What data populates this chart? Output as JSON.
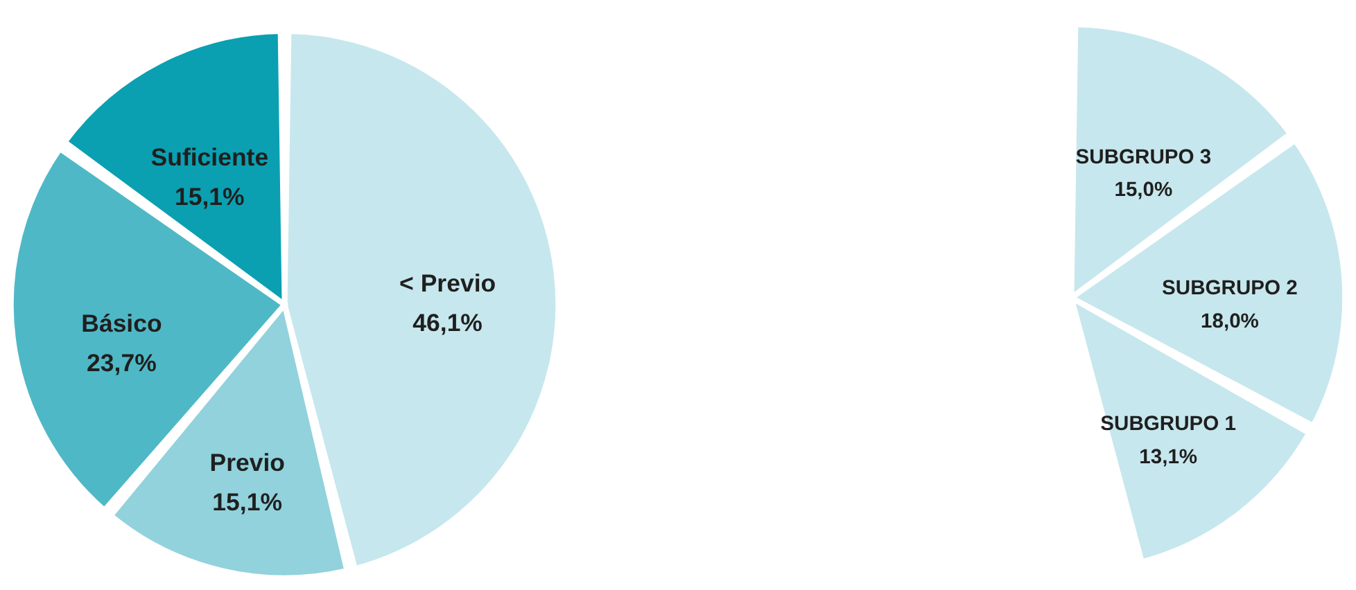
{
  "chart_data": [
    {
      "type": "pie",
      "categories": [
        "< Previo",
        "Previo",
        "Básico",
        "Suficiente"
      ],
      "values": [
        46.1,
        15.1,
        23.7,
        15.1
      ],
      "colors": [
        "#c6e7ed",
        "#91d2dc",
        "#4fb8c6",
        "#0aa0b2"
      ],
      "value_labels": [
        "46,1%",
        "15,1%",
        "23,7%",
        "15,1%"
      ]
    },
    {
      "type": "pie",
      "categories": [
        "SUBGRUPO 3",
        "SUBGRUPO 2",
        "SUBGRUPO 1"
      ],
      "values": [
        15.0,
        18.0,
        13.1
      ],
      "colors": [
        "#c6e7ed",
        "#c6e7ed",
        "#c6e7ed"
      ],
      "value_labels": [
        "15,0%",
        "18,0%",
        "13,1%"
      ]
    }
  ]
}
